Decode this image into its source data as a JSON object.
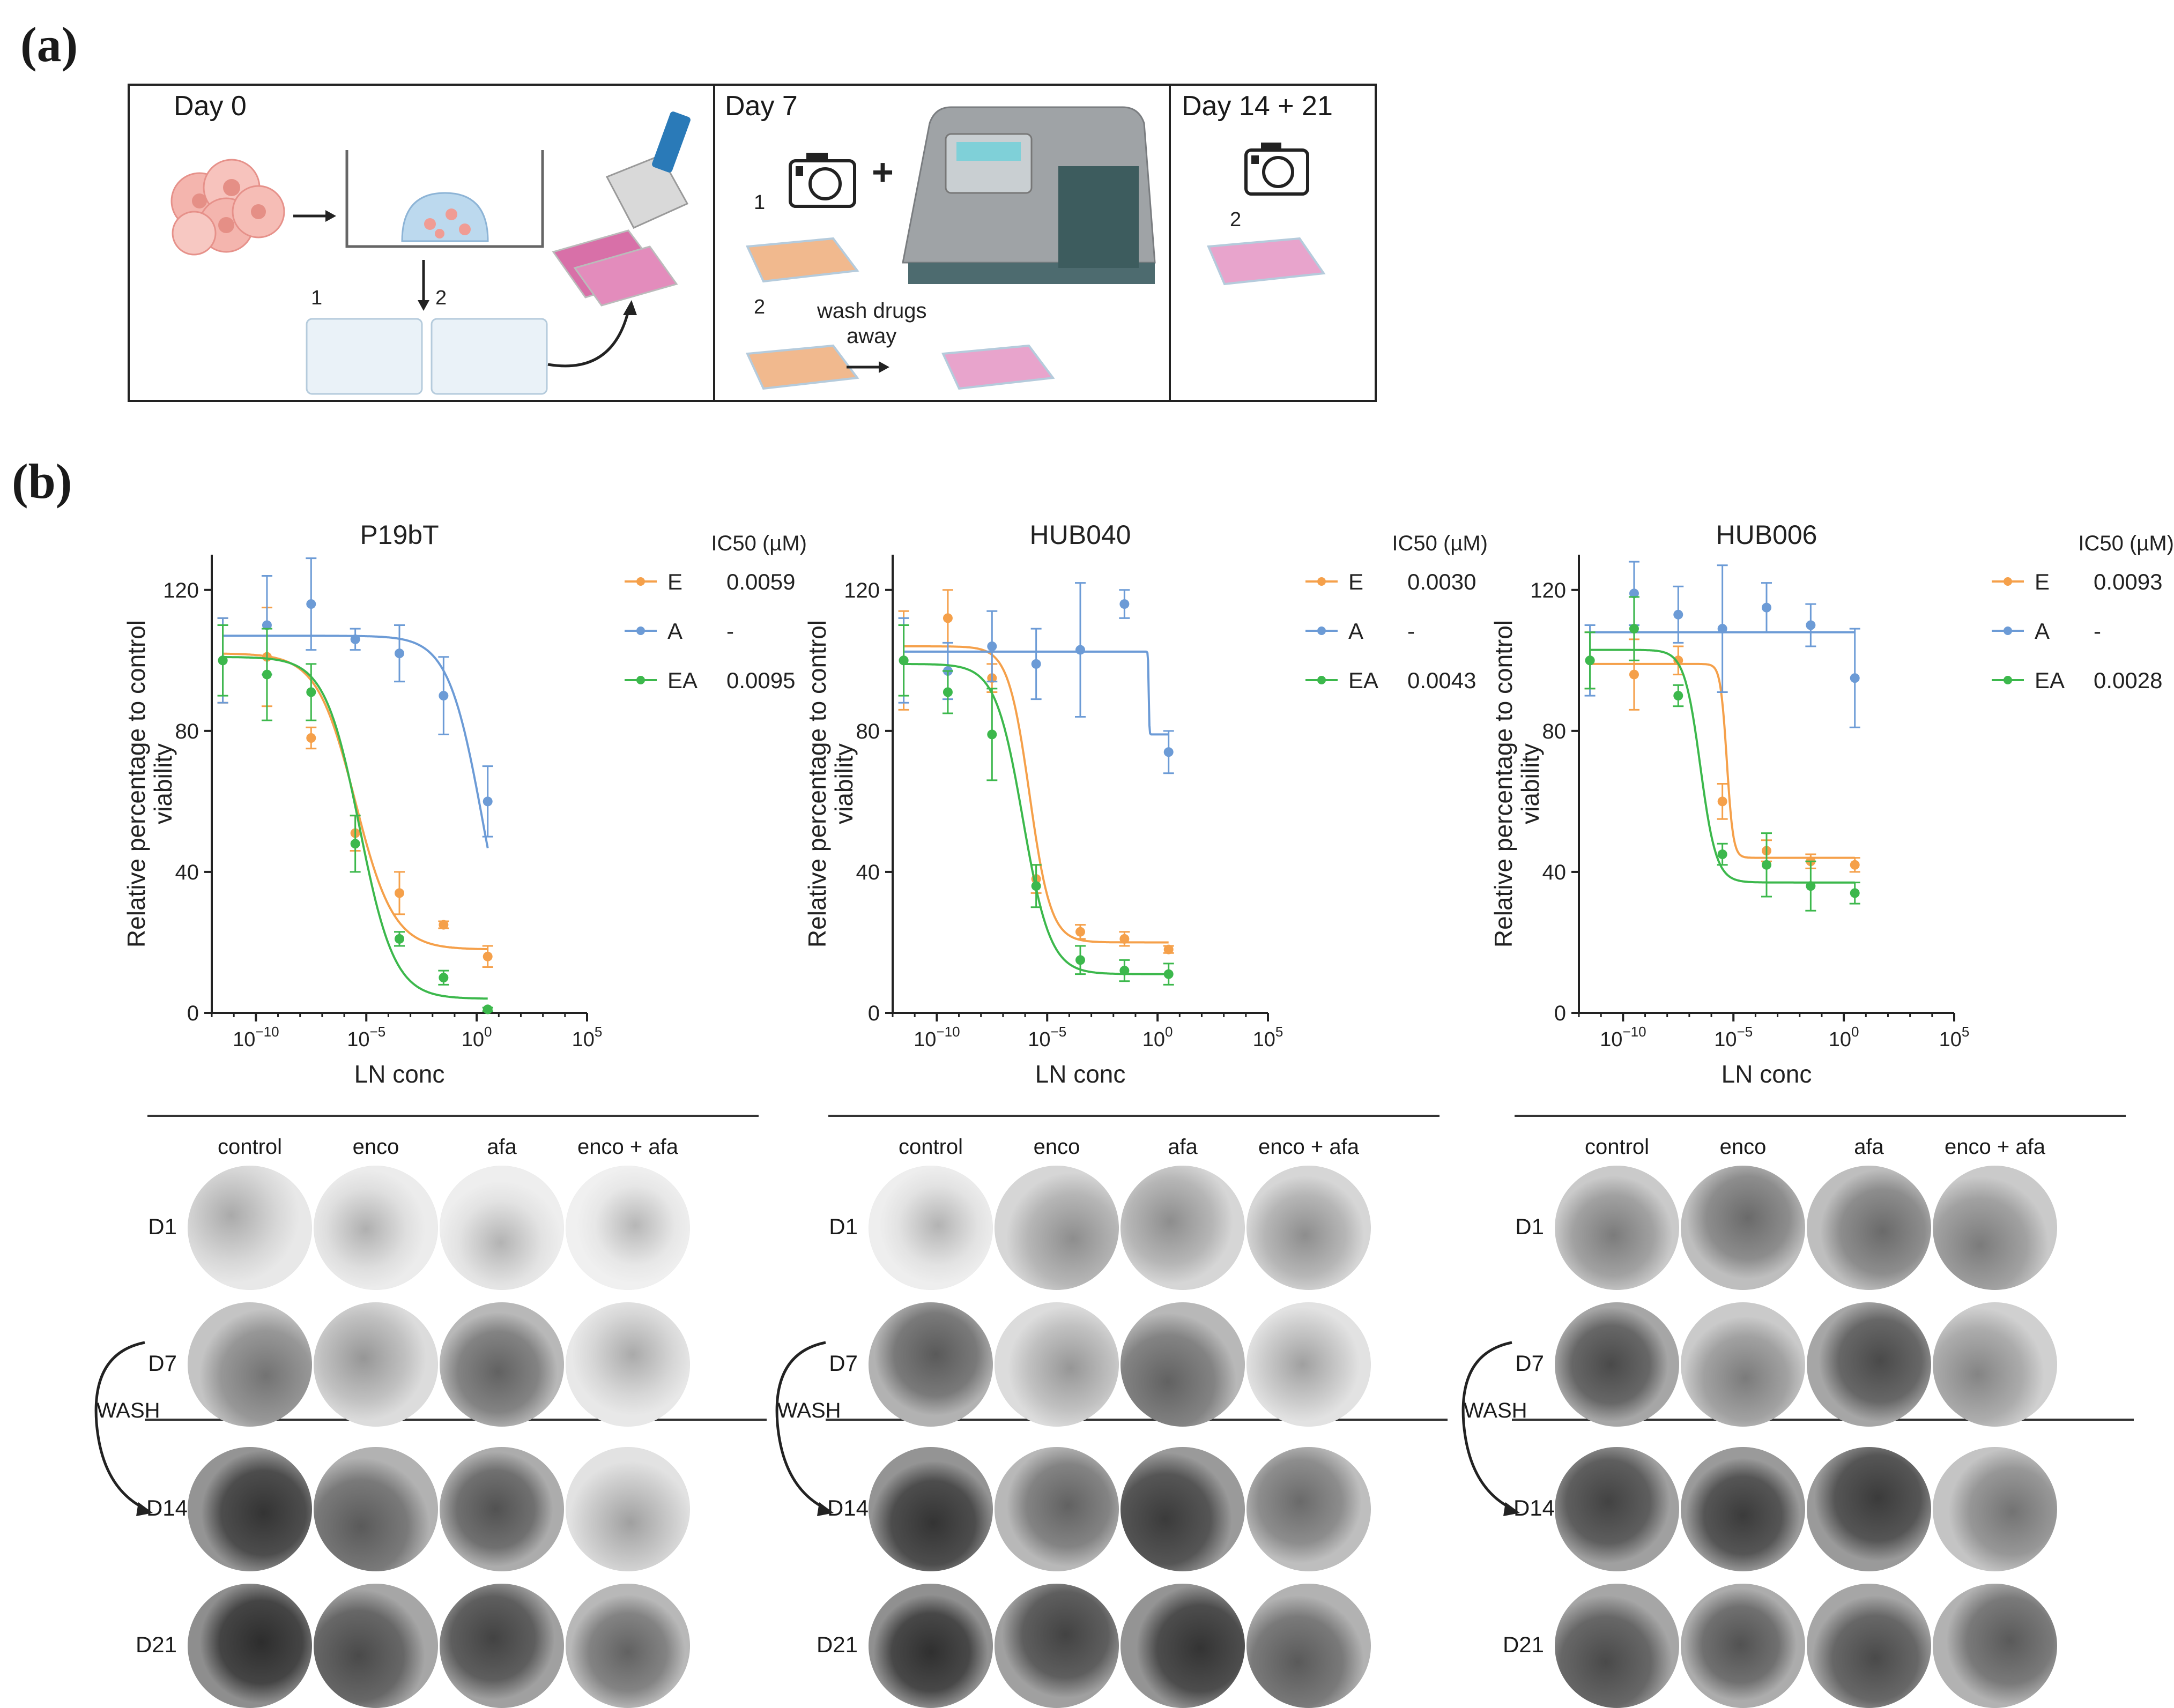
{
  "panel_labels": {
    "a": "(a)",
    "b": "(b)"
  },
  "workflow": {
    "sections": [
      {
        "title": "Day 0",
        "plate_labels": [
          "1",
          "2"
        ]
      },
      {
        "title": "Day 7",
        "plate_labels": [
          "1",
          "2"
        ],
        "plus": "+",
        "wash_text_1": "wash drugs",
        "wash_text_2": "away"
      },
      {
        "title": "Day 14 + 21",
        "plate_labels": [
          "2"
        ]
      }
    ],
    "icons": [
      "organoid-cluster-icon",
      "dome-well-icon",
      "96-well-plate-icon",
      "multichannel-pipette-icon",
      "camera-icon",
      "plate-reader-icon"
    ]
  },
  "colors": {
    "E": "#f5a04a",
    "A": "#6c9bd6",
    "EA": "#3cb84c",
    "axis": "#222222"
  },
  "chart_data": [
    {
      "type": "line",
      "title": "P19bT",
      "xlabel": "LN conc",
      "ylabel_line1": "Relative percentage to control",
      "ylabel_line2": "viability",
      "yticks": [
        0,
        40,
        80,
        120
      ],
      "ylim": [
        0,
        130
      ],
      "xticks": [
        {
          "exp": -10,
          "label": "10",
          "sup": "−10"
        },
        {
          "exp": -5,
          "label": "10",
          "sup": "−5"
        },
        {
          "exp": 0,
          "label": "10",
          "sup": "0"
        },
        {
          "exp": 5,
          "label": "10",
          "sup": "5"
        }
      ],
      "xlim_log10": [
        -12,
        5
      ],
      "legend_header": "IC50 (µM)",
      "x_log10": [
        -11.5,
        -9.5,
        -7.5,
        -5.5,
        -3.5,
        -1.5,
        0.5
      ],
      "series": [
        {
          "name": "E",
          "ic50": "0.0059",
          "values": [
            100,
            101,
            78,
            51,
            34,
            25,
            16
          ],
          "err": [
            12,
            14,
            3,
            5,
            6,
            1,
            3
          ],
          "fit": {
            "top": 102,
            "bottom": 18,
            "logec50": -5.5,
            "hill": 0.5
          }
        },
        {
          "name": "A",
          "ic50": "-",
          "values": [
            100,
            110,
            116,
            106,
            102,
            90,
            60
          ],
          "err": [
            12,
            14,
            13,
            3,
            8,
            11,
            10
          ],
          "fit": {
            "top": 107,
            "bottom": 0,
            "logec50": 0.3,
            "hill": 0.55
          }
        },
        {
          "name": "EA",
          "ic50": "0.0095",
          "values": [
            100,
            96,
            91,
            48,
            21,
            10,
            1
          ],
          "err": [
            10,
            13,
            8,
            8,
            2,
            2,
            0.5
          ],
          "fit": {
            "top": 101,
            "bottom": 4,
            "logec50": -5.3,
            "hill": 0.55
          }
        }
      ]
    },
    {
      "type": "line",
      "title": "HUB040",
      "xlabel": "LN conc",
      "ylabel_line1": "Relative percentage to control",
      "ylabel_line2": "viability",
      "yticks": [
        0,
        40,
        80,
        120
      ],
      "ylim": [
        0,
        130
      ],
      "xticks": [
        {
          "exp": -10,
          "label": "10",
          "sup": "−10"
        },
        {
          "exp": -5,
          "label": "10",
          "sup": "−5"
        },
        {
          "exp": 0,
          "label": "10",
          "sup": "0"
        },
        {
          "exp": 5,
          "label": "10",
          "sup": "5"
        }
      ],
      "xlim_log10": [
        -12,
        5
      ],
      "legend_header": "IC50 (µM)",
      "x_log10": [
        -11.5,
        -9.5,
        -7.5,
        -5.5,
        -3.5,
        -1.5,
        0.5
      ],
      "series": [
        {
          "name": "E",
          "ic50": "0.0030",
          "values": [
            100,
            112,
            95,
            38,
            23,
            21,
            18
          ],
          "err": [
            14,
            8,
            4,
            4,
            2,
            2,
            1
          ],
          "fit": {
            "top": 104,
            "bottom": 20,
            "logec50": -5.8,
            "hill": 0.9
          }
        },
        {
          "name": "A",
          "ic50": "-",
          "values": [
            100,
            97,
            104,
            99,
            103,
            116,
            74
          ],
          "err": [
            12,
            8,
            10,
            10,
            19,
            4,
            6
          ],
          "fit": {
            "top": 102.5,
            "bottom": 79,
            "logec50": -0.4,
            "hill": 30
          }
        },
        {
          "name": "EA",
          "ic50": "0.0043",
          "values": [
            100,
            91,
            79,
            36,
            15,
            12,
            11
          ],
          "err": [
            10,
            6,
            13,
            6,
            4,
            3,
            3
          ],
          "fit": {
            "top": 99,
            "bottom": 11,
            "logec50": -6.1,
            "hill": 0.7
          }
        }
      ]
    },
    {
      "type": "line",
      "title": "HUB006",
      "xlabel": "LN conc",
      "ylabel_line1": "Relative percentage to control",
      "ylabel_line2": "viability",
      "yticks": [
        0,
        40,
        80,
        120
      ],
      "ylim": [
        0,
        130
      ],
      "xticks": [
        {
          "exp": -10,
          "label": "10",
          "sup": "−10"
        },
        {
          "exp": -5,
          "label": "10",
          "sup": "−5"
        },
        {
          "exp": 0,
          "label": "10",
          "sup": "0"
        },
        {
          "exp": 5,
          "label": "10",
          "sup": "5"
        }
      ],
      "xlim_log10": [
        -12,
        5
      ],
      "legend_header": "IC50 (µM)",
      "x_log10": [
        -11.5,
        -9.5,
        -7.5,
        -5.5,
        -3.5,
        -1.5,
        0.5
      ],
      "series": [
        {
          "name": "E",
          "ic50": "0.0093",
          "values": [
            100,
            96,
            100,
            60,
            46,
            43,
            42
          ],
          "err": [
            8,
            10,
            4,
            5,
            3,
            2,
            2
          ],
          "fit": {
            "top": 99,
            "bottom": 44,
            "logec50": -5.3,
            "hill": 3
          }
        },
        {
          "name": "A",
          "ic50": "-",
          "values": [
            100,
            119,
            113,
            109,
            115,
            110,
            95
          ],
          "err": [
            10,
            9,
            8,
            18,
            7,
            6,
            14
          ],
          "fit": {
            "top": 108,
            "bottom": 108,
            "logec50": 0,
            "hill": 1
          }
        },
        {
          "name": "EA",
          "ic50": "0.0028",
          "values": [
            100,
            109,
            90,
            45,
            42,
            36,
            34
          ],
          "err": [
            8,
            9,
            3,
            3,
            9,
            7,
            3
          ],
          "fit": {
            "top": 103,
            "bottom": 37,
            "logec50": -6.5,
            "hill": 1.2
          }
        }
      ]
    }
  ],
  "plate_images": {
    "column_headers": [
      "control",
      "enco",
      "afa",
      "enco + afa"
    ],
    "row_labels": [
      "D1",
      "D7",
      "D14",
      "D21"
    ],
    "wash_label": "WASH",
    "groups": [
      {
        "name": "P19bT",
        "density": [
          [
            0.15,
            0.12,
            0.1,
            0.08
          ],
          [
            0.45,
            0.25,
            0.55,
            0.15
          ],
          [
            0.85,
            0.6,
            0.65,
            0.2
          ],
          [
            0.9,
            0.7,
            0.75,
            0.55
          ]
        ]
      },
      {
        "name": "HUB040",
        "density": [
          [
            0.1,
            0.3,
            0.3,
            0.3
          ],
          [
            0.6,
            0.25,
            0.55,
            0.2
          ],
          [
            0.85,
            0.55,
            0.8,
            0.5
          ],
          [
            0.88,
            0.75,
            0.85,
            0.6
          ]
        ]
      },
      {
        "name": "HUB006",
        "density": [
          [
            0.4,
            0.5,
            0.5,
            0.4
          ],
          [
            0.7,
            0.4,
            0.7,
            0.35
          ],
          [
            0.75,
            0.8,
            0.8,
            0.45
          ],
          [
            0.7,
            0.65,
            0.7,
            0.6
          ]
        ]
      }
    ]
  }
}
